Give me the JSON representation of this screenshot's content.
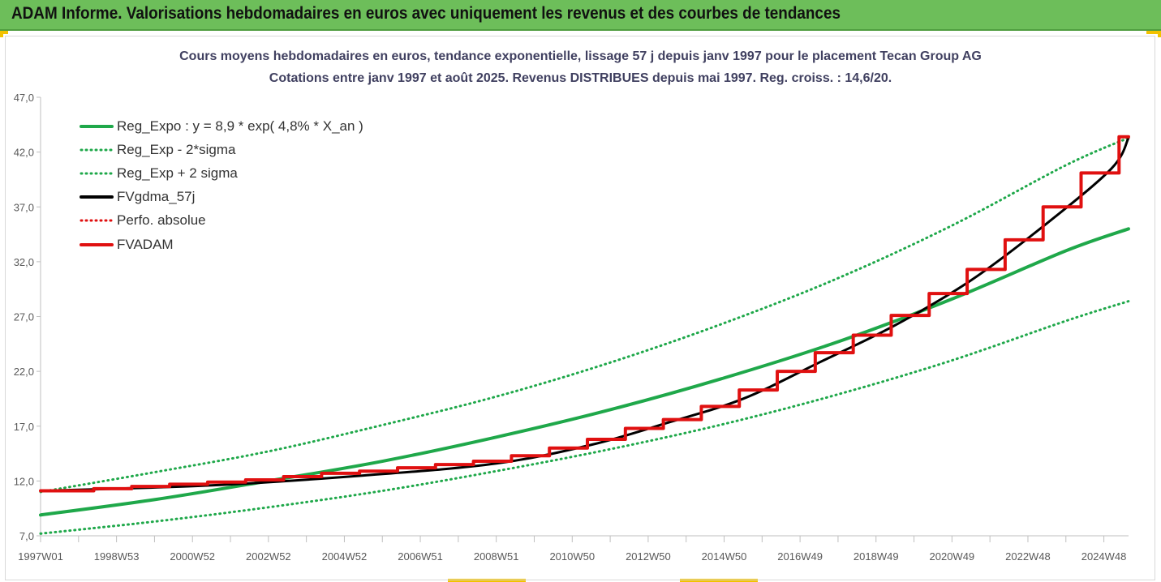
{
  "header": {
    "title": "ADAM Informe. Valorisations hebdomadaires en euros avec uniquement les revenus et des courbes de tendances"
  },
  "colors": {
    "header_bg": "#6dbe5a",
    "green": "#1fa84a",
    "black": "#000000",
    "red": "#e01010"
  },
  "chart_data": {
    "type": "line",
    "title": "Cours moyens hebdomadaires en euros, tendance exponentielle, lissage 57 j depuis janv 1997 pour le placement Tecan Group AG",
    "subtitle": "Cotations entre janv 1997 et août 2025.  Revenus DISTRIBUES depuis mai 1997. Reg. croiss. : 14,6/20.",
    "xlabel": "",
    "ylabel": "",
    "ylim": [
      7.0,
      47.0
    ],
    "yticks": [
      "7,0",
      "12,0",
      "17,0",
      "22,0",
      "27,0",
      "32,0",
      "37,0",
      "42,0",
      "47,0"
    ],
    "x_range": [
      1997.0,
      2025.65
    ],
    "xtick_labels": [
      "1997W01",
      "1998W53",
      "2000W52",
      "2002W52",
      "2004W52",
      "2006W51",
      "2008W51",
      "2010W50",
      "2012W50",
      "2014W50",
      "2016W49",
      "2018W49",
      "2020W49",
      "2022W48",
      "2024W48"
    ],
    "xtick_years": [
      1997.0,
      1999.0,
      2001.0,
      2003.0,
      2005.0,
      2007.0,
      2009.0,
      2011.0,
      2013.0,
      2015.0,
      2017.0,
      2019.0,
      2021.0,
      2023.0,
      2025.0
    ],
    "grid": false,
    "legend_position": "top-left",
    "series": [
      {
        "name": "Reg_Expo : y = 8,9 * exp( 4,8% *  X_an )",
        "style": "solid",
        "color": "#1fa84a",
        "x": [
          1997.0,
          2000.0,
          2003.0,
          2006.0,
          2009.0,
          2012.0,
          2015.0,
          2018.0,
          2021.0,
          2024.0,
          2025.65
        ],
        "y": [
          8.9,
          10.3,
          12.0,
          13.8,
          16.0,
          18.5,
          21.4,
          24.7,
          28.6,
          33.0,
          35.0
        ]
      },
      {
        "name": "Reg_Exp - 2*sigma",
        "style": "dotted",
        "color": "#1fa84a",
        "x": [
          1997.0,
          2000.0,
          2003.0,
          2006.0,
          2009.0,
          2012.0,
          2015.0,
          2018.0,
          2021.0,
          2024.0,
          2025.65
        ],
        "y": [
          7.2,
          8.3,
          9.6,
          11.1,
          12.9,
          14.9,
          17.2,
          19.9,
          23.0,
          26.6,
          28.4
        ]
      },
      {
        "name": "Reg_Exp + 2 sigma",
        "style": "dotted",
        "color": "#1fa84a",
        "x": [
          1997.0,
          2000.0,
          2003.0,
          2006.0,
          2009.0,
          2012.0,
          2015.0,
          2018.0,
          2021.0,
          2024.0,
          2025.65
        ],
        "y": [
          11.0,
          12.8,
          14.7,
          17.1,
          19.7,
          22.8,
          26.4,
          30.5,
          35.3,
          40.8,
          43.3
        ]
      },
      {
        "name": "FVgdma_57j",
        "style": "solid",
        "color": "#000000",
        "x": [
          1997.0,
          2001.5,
          2005.5,
          2009.0,
          2011.5,
          2013.5,
          2015.5,
          2017.5,
          2019.5,
          2021.5,
          2023.5,
          2025.2,
          2025.65
        ],
        "y": [
          11.1,
          11.6,
          12.5,
          13.6,
          15.3,
          17.3,
          19.5,
          22.8,
          26.2,
          30.3,
          35.5,
          40.5,
          43.3
        ]
      },
      {
        "name": "Perfo. absolue",
        "style": "dotted",
        "color": "#e01010",
        "x": [],
        "y": []
      },
      {
        "name": "FVADAM",
        "style": "step",
        "color": "#e01010",
        "x": [
          1997.0,
          1998.4,
          1999.4,
          2000.4,
          2001.4,
          2002.4,
          2003.4,
          2004.4,
          2005.4,
          2006.4,
          2007.4,
          2008.4,
          2009.4,
          2010.4,
          2011.4,
          2012.4,
          2013.4,
          2014.4,
          2015.4,
          2016.4,
          2017.4,
          2018.4,
          2019.4,
          2020.4,
          2021.4,
          2022.4,
          2023.4,
          2024.4,
          2025.4,
          2025.65
        ],
        "y": [
          11.1,
          11.3,
          11.5,
          11.7,
          11.9,
          12.1,
          12.4,
          12.7,
          12.9,
          13.2,
          13.5,
          13.8,
          14.3,
          15.0,
          15.8,
          16.8,
          17.6,
          18.8,
          20.3,
          22.0,
          23.7,
          25.3,
          27.1,
          29.1,
          31.3,
          34.0,
          37.0,
          40.1,
          43.4,
          43.4
        ]
      }
    ]
  }
}
